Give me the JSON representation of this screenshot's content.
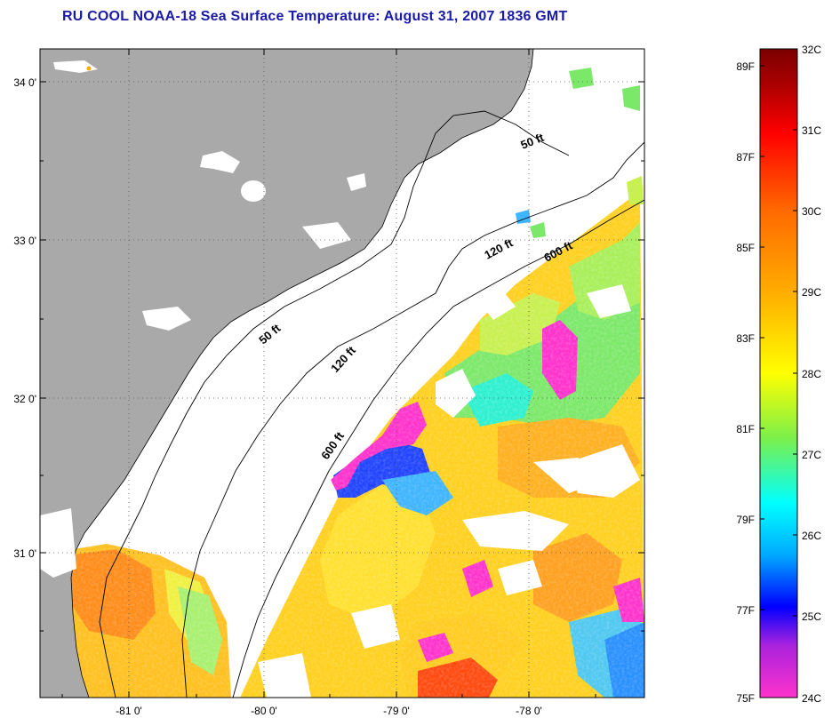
{
  "title": "RU COOL  NOAA-18  Sea Surface Temperature:  August 31, 2007 1836 GMT",
  "map": {
    "lat_labels": [
      "34 0'",
      "33 0'",
      "32 0'",
      "31 0'"
    ],
    "lon_labels": [
      "-81 0'",
      "-80 0'",
      "-79 0'",
      "-78 0'"
    ],
    "isobath_labels": [
      "50 ft",
      "120 ft",
      "600 ft",
      "50 ft",
      "120 ft",
      "600 ft"
    ]
  },
  "colors": {
    "land": "#a9a9a9",
    "cloud": "#ffffff",
    "coast": "#000000",
    "title": "#1a1aa8"
  },
  "colorbar": {
    "celsius": [
      "32C",
      "31C",
      "30C",
      "29C",
      "28C",
      "27C",
      "26C",
      "25C",
      "24C"
    ],
    "fahrenheit": [
      "89F",
      "87F",
      "85F",
      "83F",
      "81F",
      "79F",
      "77F",
      "75F"
    ]
  }
}
